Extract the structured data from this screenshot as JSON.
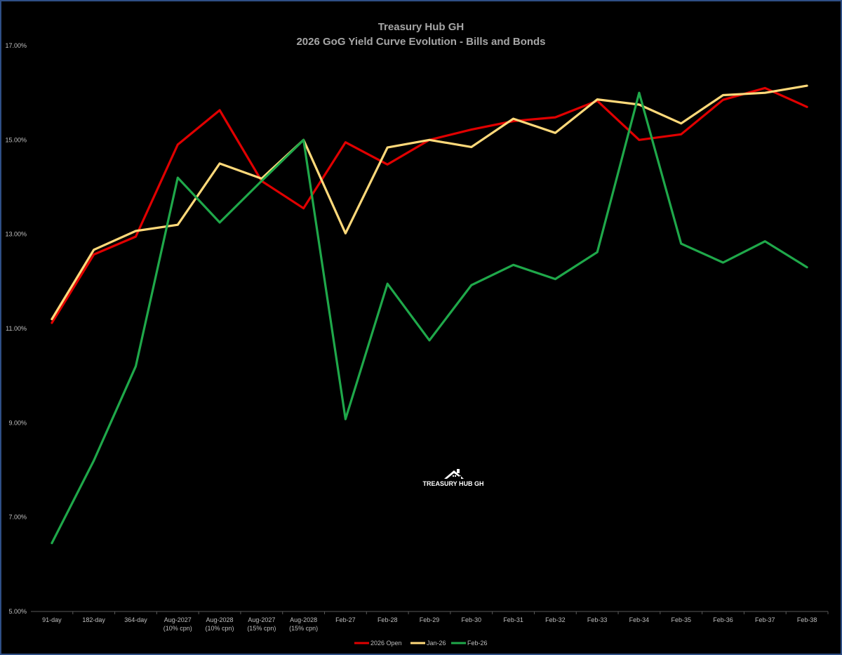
{
  "chart_data": {
    "type": "line",
    "title": "Treasury Hub GH",
    "subtitle": "2026 GoG Yield Curve Evolution - Bills and Bonds",
    "xlabel": "",
    "ylabel": "",
    "ylim": [
      5,
      17
    ],
    "y_ticks": [
      "5.00%",
      "7.00%",
      "9.00%",
      "11.00%",
      "13.00%",
      "15.00%",
      "17.00%"
    ],
    "y_tick_values": [
      5,
      7,
      9,
      11,
      13,
      15,
      17
    ],
    "grid": false,
    "legend_position": "bottom",
    "categories": [
      [
        "91-day"
      ],
      [
        "182-day"
      ],
      [
        "364-day"
      ],
      [
        "Aug-2027",
        "(10% cpn)"
      ],
      [
        "Aug-2028",
        "(10% cpn)"
      ],
      [
        "Aug-2027",
        "(15% cpn)"
      ],
      [
        "Aug-2028",
        "(15% cpn)"
      ],
      [
        "Feb-27"
      ],
      [
        "Feb-28"
      ],
      [
        "Feb-29"
      ],
      [
        "Feb-30"
      ],
      [
        "Feb-31"
      ],
      [
        "Feb-32"
      ],
      [
        "Feb-33"
      ],
      [
        "Feb-34"
      ],
      [
        "Feb-35"
      ],
      [
        "Feb-36"
      ],
      [
        "Feb-37"
      ],
      [
        "Feb-38"
      ]
    ],
    "series": [
      {
        "name": "2026 Open",
        "color": "#e00000",
        "values": [
          11.12,
          12.57,
          12.95,
          14.9,
          15.63,
          14.13,
          13.55,
          14.95,
          14.48,
          15.0,
          15.22,
          15.4,
          15.48,
          15.83,
          15.0,
          15.12,
          15.85,
          16.1,
          15.7
        ]
      },
      {
        "name": "Jan-26",
        "color": "#ffd97a",
        "values": [
          11.2,
          12.67,
          13.07,
          13.2,
          14.5,
          14.18,
          15.0,
          13.02,
          14.84,
          15.0,
          14.85,
          15.45,
          15.15,
          15.86,
          15.75,
          15.35,
          15.95,
          16.0,
          16.15
        ]
      },
      {
        "name": "Feb-26",
        "color": "#1fa84a",
        "values": [
          6.45,
          8.2,
          10.2,
          14.2,
          13.25,
          14.13,
          15.0,
          9.08,
          11.95,
          10.75,
          11.92,
          12.35,
          12.05,
          12.62,
          16.0,
          12.8,
          12.4,
          12.85,
          12.3
        ]
      }
    ],
    "watermark": "TREASURY HUB GH"
  }
}
